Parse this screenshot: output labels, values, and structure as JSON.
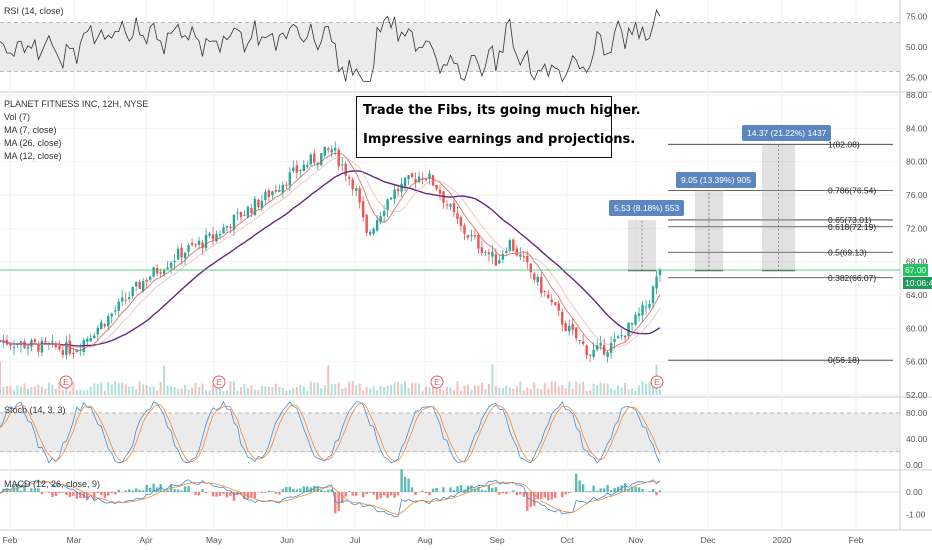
{
  "panels": {
    "rsi": {
      "label": "RSI (14, close)",
      "ticks": [
        "75.00",
        "50.00",
        "25.00"
      ]
    },
    "price": {
      "labels": [
        "PLANET FITNESS INC, 12H, NYSE",
        "Vol (7)",
        "MA (7, close)",
        "MA (26, close)",
        "MA (12, close)"
      ],
      "ticks": [
        "88.00",
        "84.00",
        "80.00",
        "76.00",
        "72.00",
        "68.00",
        "64.00",
        "60.00",
        "56.00",
        "52.00"
      ],
      "current_price": "67.00",
      "countdown": "10:06:47"
    },
    "stoch": {
      "label": "Stoch (14, 3, 3)",
      "ticks": [
        "80.00",
        "40.00",
        "0.00"
      ]
    },
    "macd": {
      "label": "MACD (12, 26, close, 9)",
      "ticks": [
        "0.00",
        "-1.00"
      ]
    }
  },
  "annotation": {
    "line1": "Trade the Fibs, its going much higher.",
    "line2": "Impressive earnings and projections."
  },
  "measurements": [
    {
      "label": "5.53 (8.18%) 553"
    },
    {
      "label": "9.05 (13.39%) 905"
    },
    {
      "label": "14.37 (21.22%) 1437"
    }
  ],
  "x_axis": [
    "Feb",
    "Mar",
    "Apr",
    "May",
    "Jun",
    "Jul",
    "Aug",
    "Sep",
    "Oct",
    "Nov",
    "Dec",
    "2020",
    "Feb"
  ],
  "earnings_marker": "E",
  "chart_data": {
    "type": "candlestick",
    "title": "PLANET FITNESS INC, 12H, NYSE",
    "ylim": [
      52,
      88
    ],
    "fib_levels": [
      {
        "label": "1(82.08)",
        "value": 82.08
      },
      {
        "label": "0.786(76.54)",
        "value": 76.54
      },
      {
        "label": "0.65(73.01)",
        "value": 73.01
      },
      {
        "label": "0.618(72.19)",
        "value": 72.19
      },
      {
        "label": "0.5(69.13)",
        "value": 69.13
      },
      {
        "label": "0.382(66.07)",
        "value": 66.07
      },
      {
        "label": "0(56.18)",
        "value": 56.18
      }
    ],
    "price_path": [
      [
        "Feb",
        58.5
      ],
      [
        "Feb 15",
        57.8
      ],
      [
        "Mar",
        57.5
      ],
      [
        "Mar 15",
        61.5
      ],
      [
        "Apr",
        66
      ],
      [
        "Apr 15",
        69
      ],
      [
        "May",
        71
      ],
      [
        "May 8",
        73
      ],
      [
        "May 20",
        75.5
      ],
      [
        "Jun",
        78
      ],
      [
        "Jun 10",
        80
      ],
      [
        "Jun 20",
        81.5
      ],
      [
        "Jul",
        77
      ],
      [
        "Jul 5",
        71
      ],
      [
        "Jul 15",
        76
      ],
      [
        "Jul 25",
        78
      ],
      [
        "Aug",
        78.5
      ],
      [
        "Aug 5",
        77
      ],
      [
        "Aug 15",
        72
      ],
      [
        "Sep",
        68
      ],
      [
        "Sep 5",
        70.5
      ],
      [
        "Sep 15",
        66.5
      ],
      [
        "Oct",
        60
      ],
      [
        "Oct 10",
        57
      ],
      [
        "Oct 20",
        58
      ],
      [
        "Nov",
        61
      ],
      [
        "Nov 5",
        63
      ],
      [
        "Nov 10",
        67
      ]
    ],
    "colors": {
      "up": "#26a69a",
      "down": "#ef5350",
      "ma_purple": "#5e2a84",
      "ma_red": "#d9534f",
      "current": "#22c55e",
      "measure": "#5b86c0"
    }
  }
}
